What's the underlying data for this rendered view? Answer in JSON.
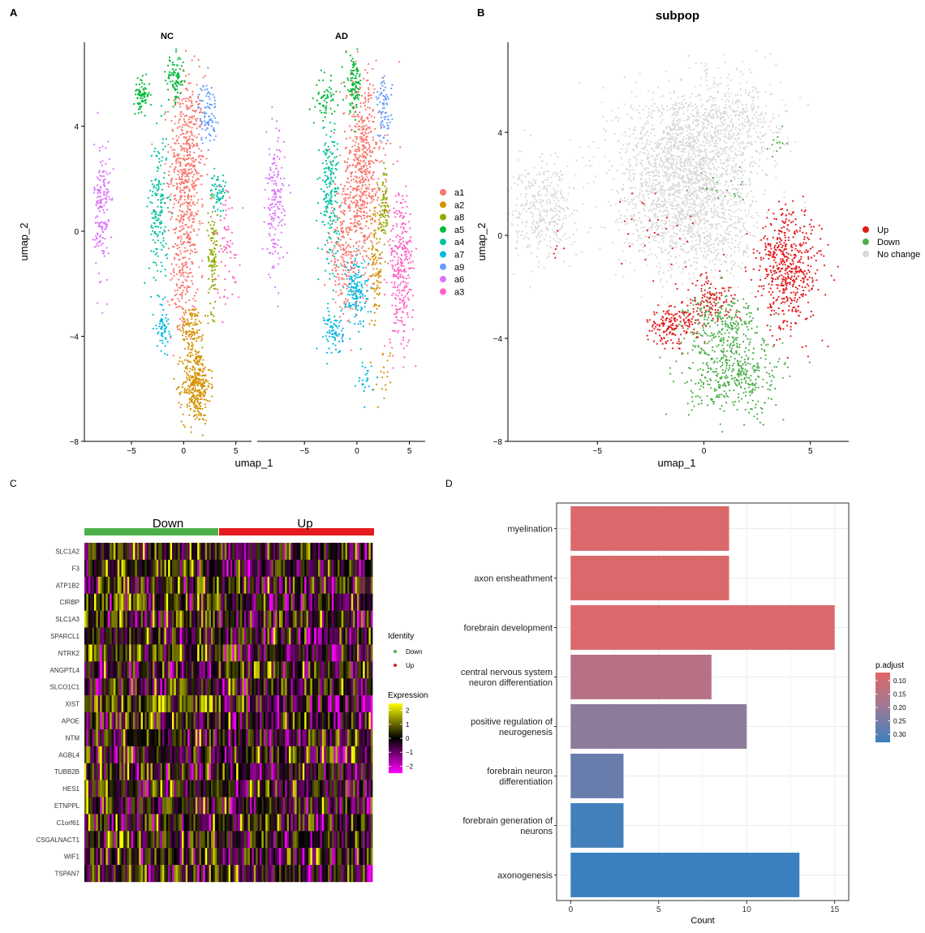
{
  "panel_labels": [
    "A",
    "B",
    "C",
    "D"
  ],
  "colors": {
    "a1": "#F8766D",
    "a2": "#D39200",
    "a8": "#93AA00",
    "a5": "#00BA38",
    "a4": "#00C19F",
    "a7": "#00B9E3",
    "a9": "#619CFF",
    "a6": "#DB72FB",
    "a3": "#FF61C3",
    "up": "#E41A1C",
    "down": "#4DAF4A",
    "nochange": "#D9D9D9",
    "heat_low": "#FF00FF",
    "heat_mid": "#000000",
    "heat_high": "#FFFF00"
  },
  "chart_data": [
    {
      "panel": "A",
      "type": "scatter",
      "facets": [
        "NC",
        "AD"
      ],
      "xlabel": "umap_1",
      "ylabel": "umap_2",
      "xticks": [
        -5,
        0,
        5
      ],
      "yticks": [
        -8,
        -4,
        0,
        4
      ],
      "xlim": [
        -9.5,
        6.5
      ],
      "ylim": [
        -8,
        7.2
      ],
      "legend": [
        "a1",
        "a2",
        "a8",
        "a5",
        "a4",
        "a7",
        "a9",
        "a6",
        "a3"
      ],
      "legend_position": "right"
    },
    {
      "panel": "B",
      "type": "scatter",
      "title": "subpop",
      "xlabel": "umap_1",
      "ylabel": "umap_2",
      "xticks": [
        -5,
        0,
        5
      ],
      "yticks": [
        -8,
        -4,
        0,
        4
      ],
      "xlim": [
        -9.2,
        6.8
      ],
      "ylim": [
        -8,
        7.5
      ],
      "legend": [
        "Up",
        "Down",
        "No change"
      ],
      "legend_position": "right"
    },
    {
      "panel": "C",
      "type": "heatmap",
      "groups": [
        "Down",
        "Up"
      ],
      "genes": [
        "SLC1A2",
        "F3",
        "ATP1B2",
        "CIRBP",
        "SLC1A3",
        "SPARCL1",
        "NTRK2",
        "ANGPTL4",
        "SLCO1C1",
        "XIST",
        "APOE",
        "NTM",
        "AGBL4",
        "TUBB2B",
        "HES1",
        "ETNPPL",
        "C1orf61",
        "CSGALNACT1",
        "WIF1",
        "TSPAN7"
      ],
      "legend_identity_title": "Identity",
      "legend_identity": [
        "Down",
        "Up"
      ],
      "legend_expression_title": "Expression",
      "expression_ticks": [
        "2",
        "1",
        "0",
        "−1",
        "−2"
      ],
      "expression_range": [
        -2.5,
        2.5
      ]
    },
    {
      "panel": "D",
      "type": "bar",
      "orientation": "horizontal",
      "categories": [
        "myelination",
        "axon ensheathment",
        "forebrain development",
        "central nervous system\nneuron differentiation",
        "positive regulation of\nneurogenesis",
        "forebrain neuron\ndifferentiation",
        "forebrain generation of\nneurons",
        "axonogenesis"
      ],
      "values": [
        9,
        9,
        15,
        8,
        10,
        3,
        3,
        13
      ],
      "p_adjust": [
        0.08,
        0.08,
        0.08,
        0.15,
        0.22,
        0.27,
        0.32,
        0.33
      ],
      "xlabel": "Count",
      "xticks": [
        0,
        5,
        10,
        15
      ],
      "xlim": [
        -0.8,
        15.8
      ],
      "legend_title": "p.adjust",
      "legend_ticks": [
        "0.10",
        "0.15",
        "0.20",
        "0.25",
        "0.30"
      ],
      "legend_range": [
        0.07,
        0.33
      ]
    }
  ]
}
